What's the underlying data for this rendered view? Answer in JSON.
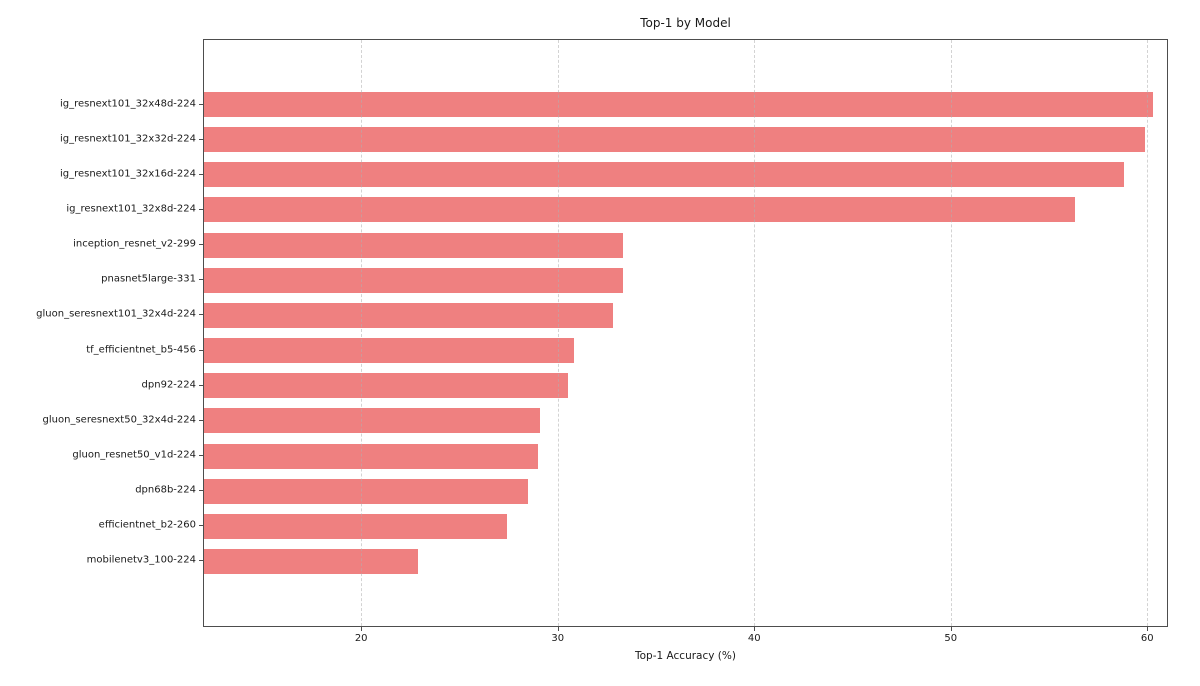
{
  "chart_data": {
    "type": "bar",
    "orientation": "horizontal",
    "title": "Top-1 by Model",
    "xlabel": "Top-1 Accuracy (%)",
    "ylabel": "",
    "categories": [
      "ig_resnext101_32x48d-224",
      "ig_resnext101_32x32d-224",
      "ig_resnext101_32x16d-224",
      "ig_resnext101_32x8d-224",
      "inception_resnet_v2-299",
      "pnasnet5large-331",
      "gluon_seresnext101_32x4d-224",
      "tf_efficientnet_b5-456",
      "dpn92-224",
      "gluon_seresnext50_32x4d-224",
      "gluon_resnet50_v1d-224",
      "dpn68b-224",
      "efficientnet_b2-260",
      "mobilenetv3_100-224"
    ],
    "values": [
      60.3,
      59.9,
      58.8,
      56.3,
      33.3,
      33.3,
      32.8,
      30.8,
      30.5,
      29.1,
      29.0,
      28.5,
      27.4,
      22.9
    ],
    "xlim": [
      12,
      61
    ],
    "xticks": [
      20,
      30,
      40,
      50,
      60
    ],
    "bar_color": "#ef8080",
    "grid": true,
    "grid_axis": "x",
    "grid_style": "dashed",
    "legend": "none"
  }
}
